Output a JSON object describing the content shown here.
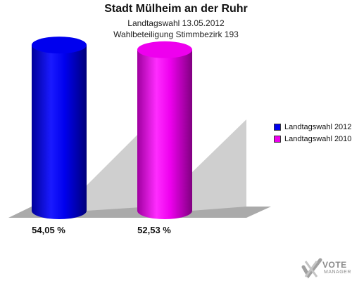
{
  "chart_data": {
    "type": "bar",
    "title": "Stadt Mülheim an der Ruhr",
    "subtitle_1": "Landtagswahl 13.05.2012",
    "subtitle_2": "Wahlbeteiligung Stimmbezirk 193",
    "series": [
      {
        "name": "Landtagswahl 2012",
        "value": 54.05,
        "label": "54,05 %",
        "color": "#0000ee"
      },
      {
        "name": "Landtagswahl 2010",
        "value": 52.53,
        "label": "52,53 %",
        "color": "#ee00ee"
      }
    ],
    "ylim": [
      0,
      55
    ],
    "grid": false,
    "legend_position": "right",
    "style": "3d-cylinder"
  },
  "logo": {
    "line1": "VOTE",
    "line2": "MANAGER",
    "icon": "checkmark-cross-icon"
  }
}
